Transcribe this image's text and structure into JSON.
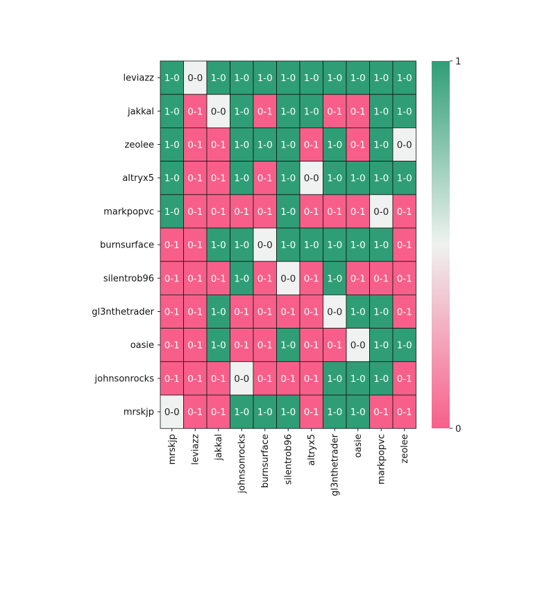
{
  "chart_data": {
    "type": "heatmap",
    "title": "",
    "xlabel": "",
    "ylabel": "",
    "rows": [
      "leviazz",
      "jakkal",
      "zeolee",
      "altryx5",
      "markpopvc",
      "burnsurface",
      "silentrob96",
      "gl3nthetrader",
      "oasie",
      "johnsonrocks",
      "mrskjp"
    ],
    "columns": [
      "mrskjp",
      "leviazz",
      "jakkal",
      "johnsonrocks",
      "burnsurface",
      "silentrob96",
      "altryx5",
      "gl3nthetrader",
      "oasie",
      "markpopvc",
      "zeolee"
    ],
    "values": [
      [
        1,
        0.5,
        1,
        1,
        1,
        1,
        1,
        1,
        1,
        1,
        1
      ],
      [
        1,
        0,
        0.5,
        1,
        0,
        1,
        1,
        0,
        0,
        1,
        1
      ],
      [
        1,
        0,
        0,
        1,
        1,
        1,
        0,
        1,
        0,
        1,
        0.5
      ],
      [
        1,
        0,
        0,
        1,
        0,
        1,
        0.5,
        1,
        1,
        1,
        1
      ],
      [
        1,
        0,
        0,
        0,
        0,
        1,
        0,
        0,
        0,
        0.5,
        0
      ],
      [
        0,
        0,
        1,
        1,
        0.5,
        1,
        1,
        1,
        1,
        1,
        0
      ],
      [
        0,
        0,
        0,
        1,
        0,
        0.5,
        0,
        1,
        0,
        0,
        0
      ],
      [
        0,
        0,
        1,
        0,
        0,
        0,
        0,
        0.5,
        1,
        1,
        0
      ],
      [
        0,
        0,
        1,
        0,
        0,
        1,
        0,
        0,
        0.5,
        1,
        1
      ],
      [
        0,
        0,
        0,
        0.5,
        0,
        0,
        0,
        1,
        1,
        1,
        0
      ],
      [
        0.5,
        0,
        0,
        1,
        1,
        1,
        0,
        1,
        1,
        0,
        0
      ]
    ],
    "annotations": [
      [
        "1-0",
        "0-0",
        "1-0",
        "1-0",
        "1-0",
        "1-0",
        "1-0",
        "1-0",
        "1-0",
        "1-0",
        "1-0"
      ],
      [
        "1-0",
        "0-1",
        "0-0",
        "1-0",
        "0-1",
        "1-0",
        "1-0",
        "0-1",
        "0-1",
        "1-0",
        "1-0"
      ],
      [
        "1-0",
        "0-1",
        "0-1",
        "1-0",
        "1-0",
        "1-0",
        "0-1",
        "1-0",
        "0-1",
        "1-0",
        "0-0"
      ],
      [
        "1-0",
        "0-1",
        "0-1",
        "1-0",
        "0-1",
        "1-0",
        "0-0",
        "1-0",
        "1-0",
        "1-0",
        "1-0"
      ],
      [
        "1-0",
        "0-1",
        "0-1",
        "0-1",
        "0-1",
        "1-0",
        "0-1",
        "0-1",
        "0-1",
        "0-0",
        "0-1"
      ],
      [
        "0-1",
        "0-1",
        "1-0",
        "1-0",
        "0-0",
        "1-0",
        "1-0",
        "1-0",
        "1-0",
        "1-0",
        "0-1"
      ],
      [
        "0-1",
        "0-1",
        "0-1",
        "1-0",
        "0-1",
        "0-0",
        "0-1",
        "1-0",
        "0-1",
        "0-1",
        "0-1"
      ],
      [
        "0-1",
        "0-1",
        "1-0",
        "0-1",
        "0-1",
        "0-1",
        "0-1",
        "0-0",
        "1-0",
        "1-0",
        "0-1"
      ],
      [
        "0-1",
        "0-1",
        "1-0",
        "0-1",
        "0-1",
        "1-0",
        "0-1",
        "0-1",
        "0-0",
        "1-0",
        "1-0"
      ],
      [
        "0-1",
        "0-1",
        "0-1",
        "0-0",
        "0-1",
        "0-1",
        "0-1",
        "1-0",
        "1-0",
        "1-0",
        "0-1"
      ],
      [
        "0-0",
        "0-1",
        "0-1",
        "1-0",
        "1-0",
        "1-0",
        "0-1",
        "1-0",
        "1-0",
        "0-1",
        "0-1"
      ]
    ],
    "colorbar": {
      "ticks": [
        "1",
        "0"
      ],
      "range": [
        0,
        1
      ],
      "colors": {
        "high": "#2f9e76",
        "mid": "#eff2f0",
        "low": "#f75f8a"
      }
    },
    "grid": true
  }
}
